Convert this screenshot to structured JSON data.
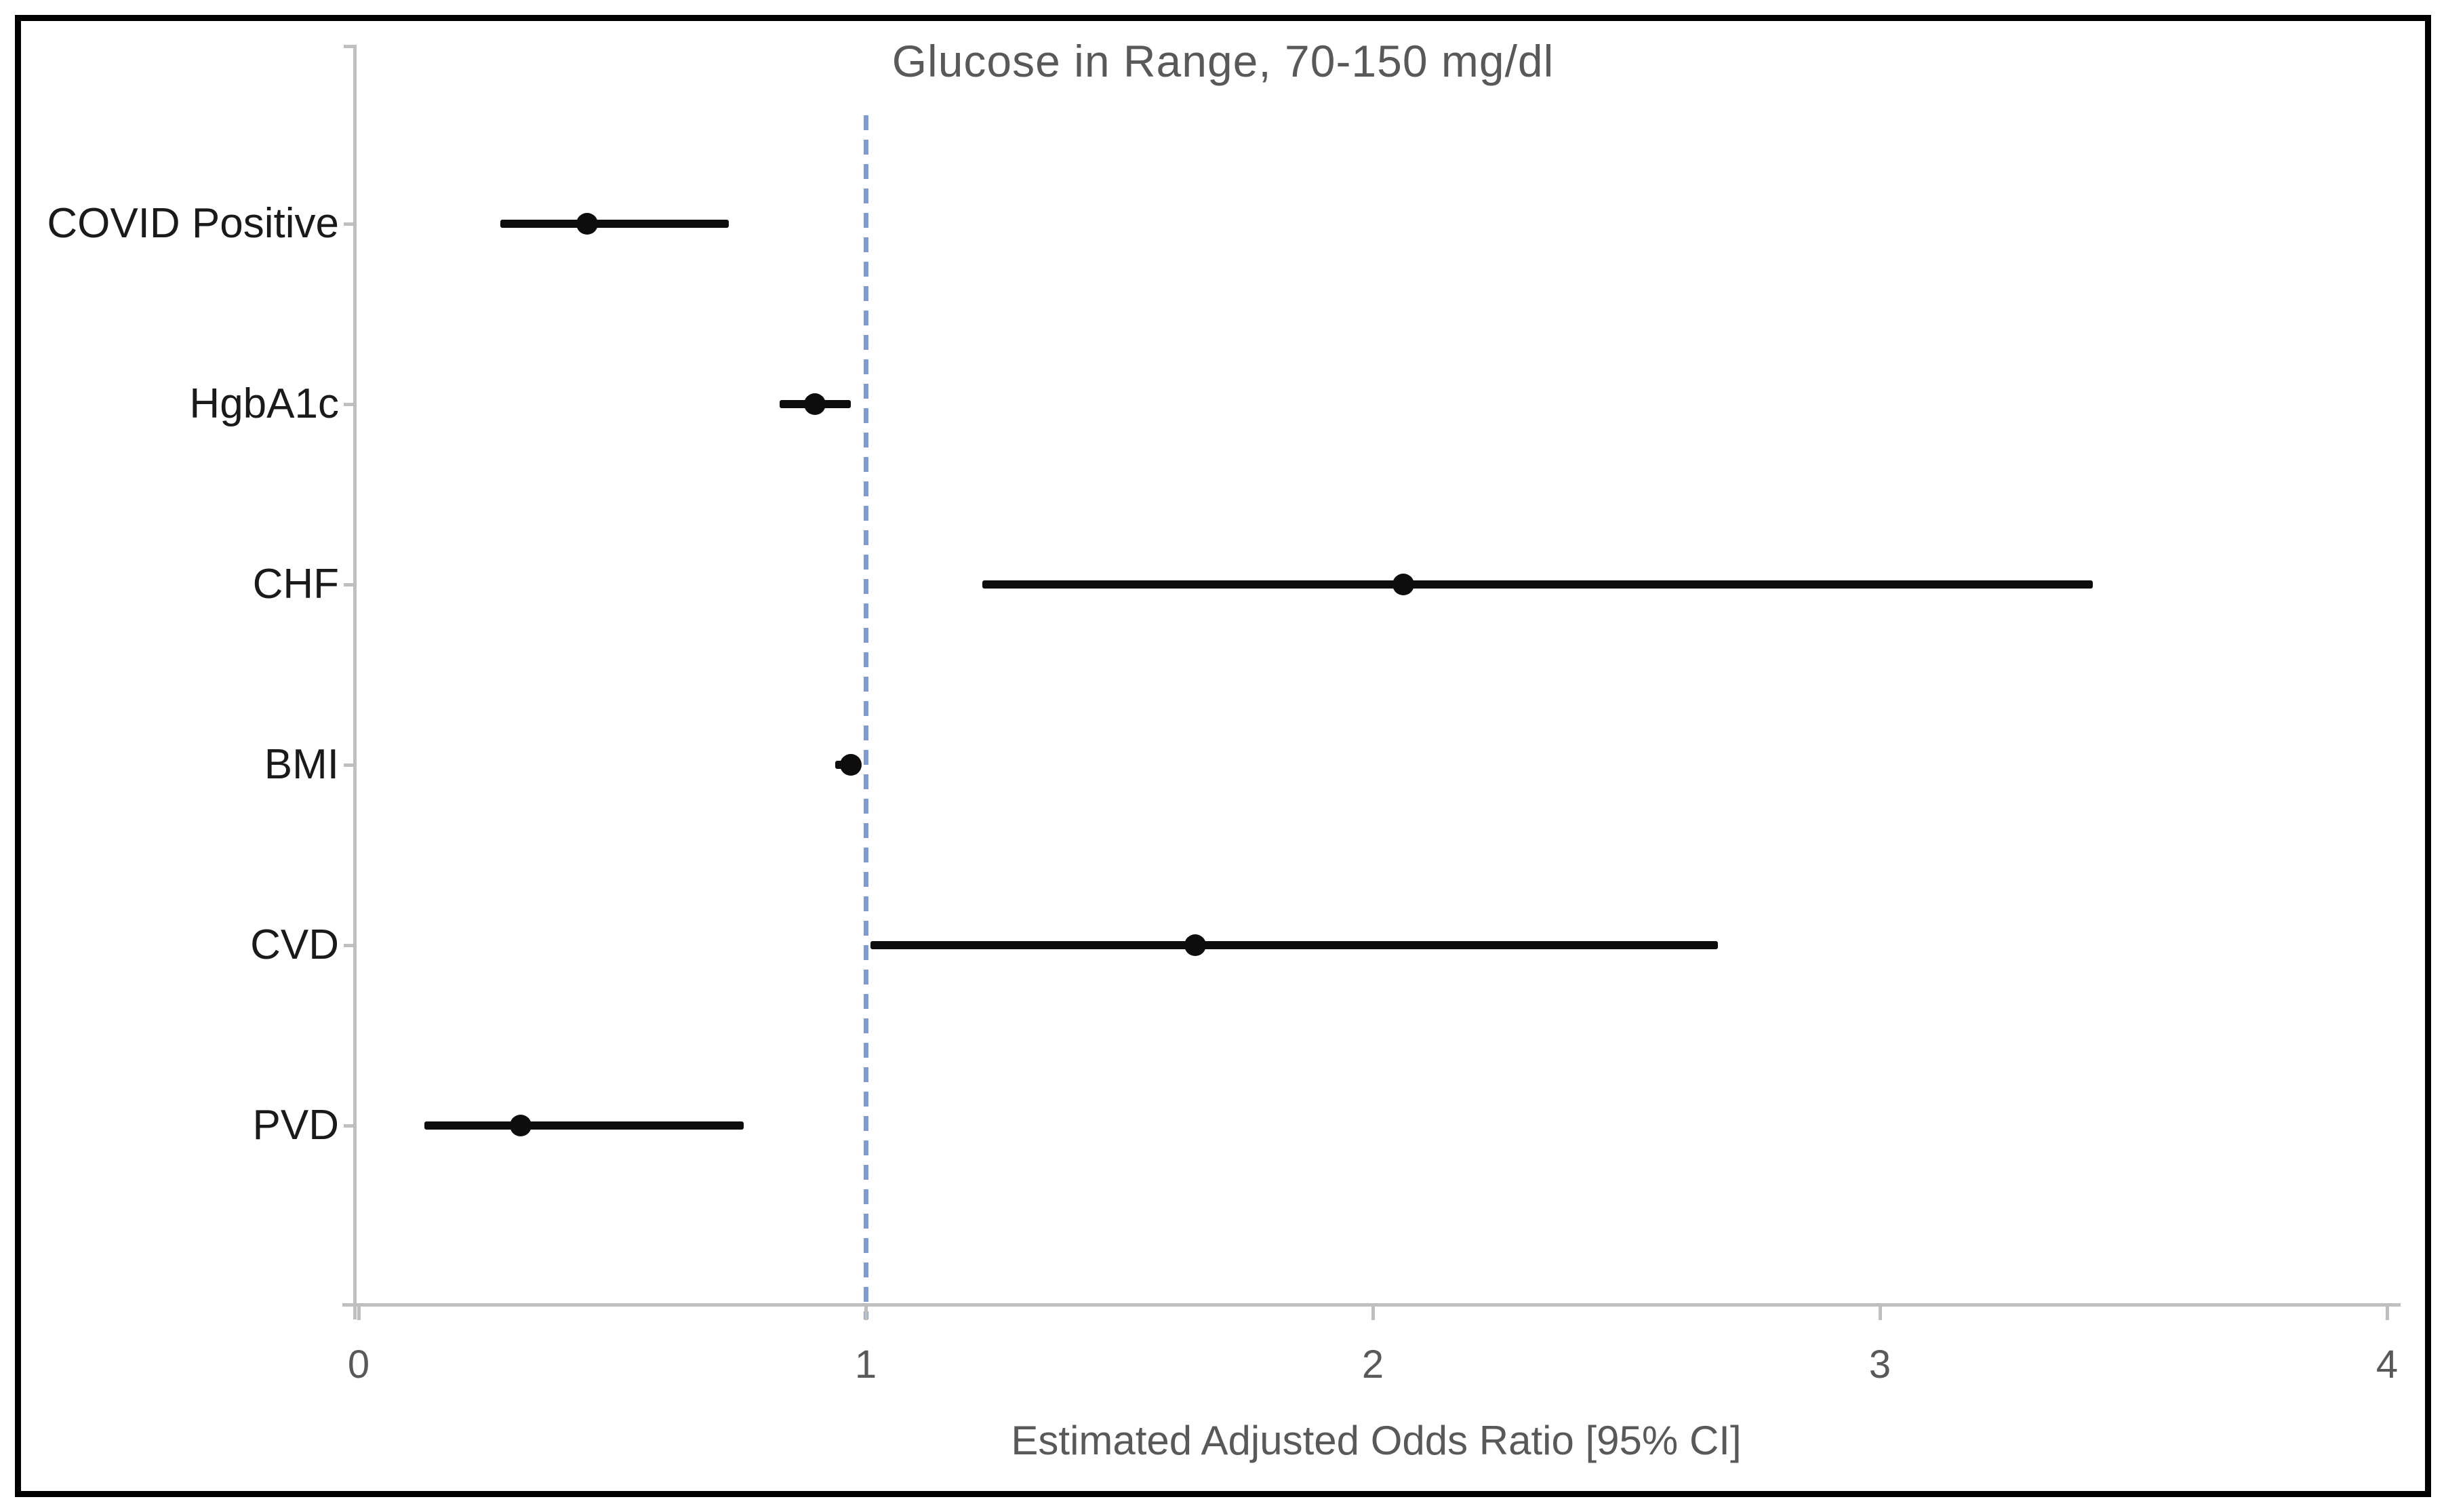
{
  "figure": {
    "title": "Glucose in Range, 70-150 mg/dl",
    "xlabel": "Estimated Adjusted Odds Ratio [95% CI]"
  },
  "colors": {
    "background": "#FFFFFF",
    "outer_border": "#000000",
    "axis_line": "#BFBFBF",
    "axis_text": "#595959",
    "title_text": "#595959",
    "category_text": "#1A1A1A",
    "marker_and_ci": "#0D0D0D",
    "reference_line_blue": "#7E9CD3"
  },
  "chart_data": {
    "type": "scatter",
    "subtype": "forest-plot-with-95ci-error-bars",
    "title": "Glucose in Range, 70-150 mg/dl",
    "xlabel": "Estimated Adjusted Odds Ratio [95% CI]",
    "ylabel": "",
    "xlim": [
      0,
      4
    ],
    "x_ticks": [
      "0",
      "1",
      "2",
      "3",
      "4"
    ],
    "x_tick_values": [
      0,
      1,
      2,
      3,
      4
    ],
    "reference_line_x": 1,
    "grid": false,
    "legend": "none",
    "categories": [
      "COVID Positive",
      "HgbA1c",
      "CHF",
      "BMI",
      "CVD",
      "PVD"
    ],
    "series": [
      {
        "name": "Estimated Adjusted Odds Ratio",
        "values": [
          0.45,
          0.9,
          2.06,
          0.97,
          1.65,
          0.32
        ],
        "ci_low": [
          0.28,
          0.83,
          1.23,
          0.94,
          1.01,
          0.13
        ],
        "ci_high": [
          0.73,
          0.97,
          3.42,
          0.99,
          2.68,
          0.76
        ]
      }
    ]
  }
}
